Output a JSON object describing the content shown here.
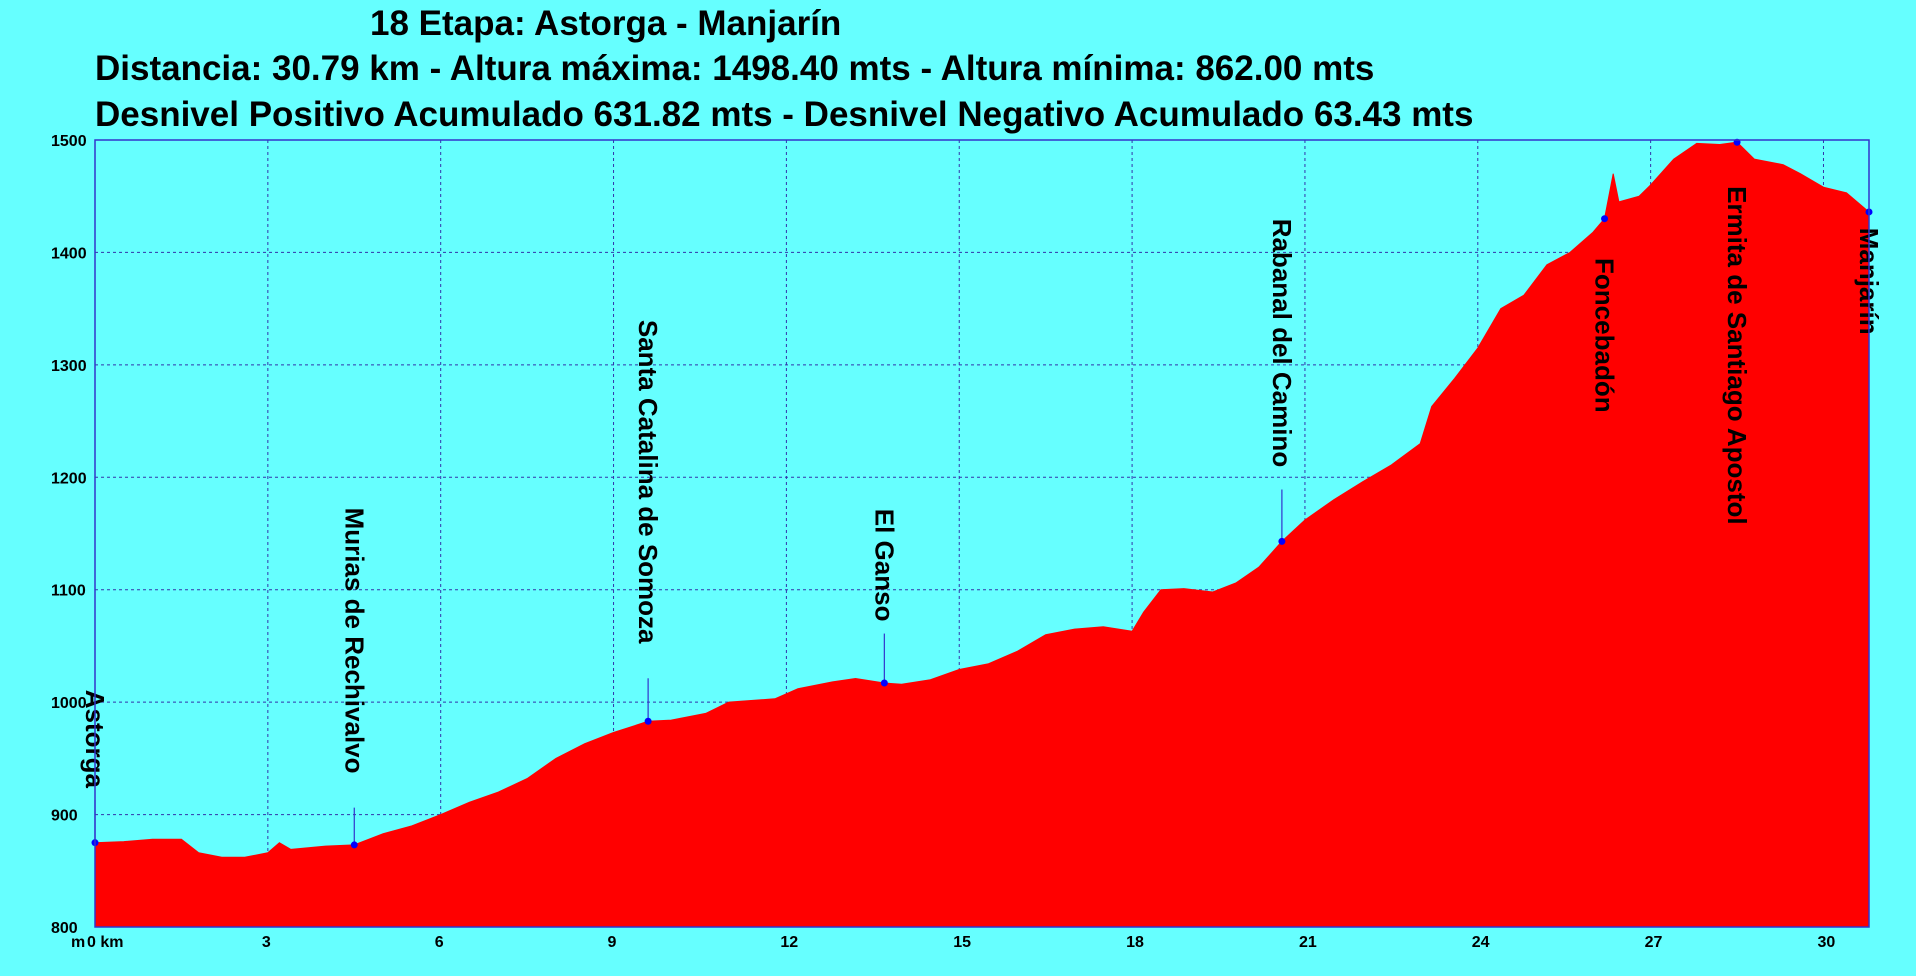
{
  "header": {
    "title": "18 Etapa: Astorga - Manjarín",
    "line2": "Distancia: 30.79 km - Altura máxima: 1498.40 mts - Altura mínima: 862.00 mts",
    "line3": "Desnivel Positivo Acumulado 631.82 mts - Desnivel Negativo Acumulado 63.43 mts"
  },
  "colors": {
    "background": "#66ffff",
    "fill": "#ff0000",
    "outline": "#3333cc",
    "grid": "#3333aa",
    "marker": "#0000ff"
  },
  "chart_data": {
    "type": "area",
    "title": "18 Etapa: Astorga - Manjarín",
    "xlabel": "km",
    "ylabel": "m",
    "xlim": [
      0,
      30.79
    ],
    "ylim": [
      800,
      1500
    ],
    "x_ticks": [
      0,
      3,
      6,
      9,
      12,
      15,
      18,
      21,
      24,
      27,
      30
    ],
    "x_tick_labels": [
      "0 km",
      "3",
      "6",
      "9",
      "12",
      "15",
      "18",
      "21",
      "24",
      "27",
      "30"
    ],
    "y_ticks": [
      800,
      900,
      1000,
      1100,
      1200,
      1300,
      1400,
      1500
    ],
    "y_axis_unit": "m",
    "grid": true,
    "profile": [
      [
        0,
        875
      ],
      [
        0.5,
        876
      ],
      [
        1.0,
        878
      ],
      [
        1.5,
        878
      ],
      [
        1.8,
        866
      ],
      [
        2.2,
        862
      ],
      [
        2.6,
        862
      ],
      [
        3.0,
        866
      ],
      [
        3.2,
        875
      ],
      [
        3.4,
        869
      ],
      [
        4.0,
        872
      ],
      [
        4.5,
        873
      ],
      [
        5.0,
        883
      ],
      [
        5.5,
        890
      ],
      [
        6.0,
        900
      ],
      [
        6.5,
        911
      ],
      [
        7.0,
        920
      ],
      [
        7.5,
        932
      ],
      [
        8.0,
        950
      ],
      [
        8.5,
        963
      ],
      [
        9.0,
        973
      ],
      [
        9.6,
        983
      ],
      [
        10.0,
        984
      ],
      [
        10.6,
        990
      ],
      [
        11.0,
        1000
      ],
      [
        11.8,
        1003
      ],
      [
        12.2,
        1012
      ],
      [
        12.8,
        1018
      ],
      [
        13.2,
        1021
      ],
      [
        13.7,
        1017
      ],
      [
        14.0,
        1016
      ],
      [
        14.5,
        1020
      ],
      [
        15.0,
        1029
      ],
      [
        15.5,
        1034
      ],
      [
        16.0,
        1045
      ],
      [
        16.5,
        1060
      ],
      [
        17.0,
        1065
      ],
      [
        17.5,
        1067
      ],
      [
        18.0,
        1063
      ],
      [
        18.2,
        1080
      ],
      [
        18.5,
        1100
      ],
      [
        18.9,
        1101
      ],
      [
        19.4,
        1098
      ],
      [
        19.8,
        1106
      ],
      [
        20.2,
        1120
      ],
      [
        20.6,
        1143
      ],
      [
        21.0,
        1162
      ],
      [
        21.5,
        1180
      ],
      [
        22.0,
        1196
      ],
      [
        22.5,
        1211
      ],
      [
        23.0,
        1230
      ],
      [
        23.2,
        1263
      ],
      [
        23.6,
        1288
      ],
      [
        24.0,
        1315
      ],
      [
        24.4,
        1350
      ],
      [
        24.8,
        1362
      ],
      [
        25.2,
        1389
      ],
      [
        25.6,
        1400
      ],
      [
        26.0,
        1418
      ],
      [
        26.2,
        1430
      ],
      [
        26.35,
        1470
      ],
      [
        26.45,
        1445
      ],
      [
        26.8,
        1450
      ],
      [
        27.0,
        1460
      ],
      [
        27.4,
        1483
      ],
      [
        27.8,
        1497
      ],
      [
        28.2,
        1496
      ],
      [
        28.5,
        1498
      ],
      [
        28.8,
        1483
      ],
      [
        29.3,
        1478
      ],
      [
        29.6,
        1470
      ],
      [
        30.0,
        1458
      ],
      [
        30.4,
        1453
      ],
      [
        30.79,
        1436
      ]
    ],
    "waypoints": [
      {
        "name": "Astorga",
        "km": 0,
        "elev": 875,
        "label_top_elev": 1011
      },
      {
        "name": "Murias de Rechivalvo",
        "km": 4.5,
        "elev": 873,
        "label_top_elev": 1173
      },
      {
        "name": "Santa Catalina de Somoza",
        "km": 9.6,
        "elev": 983,
        "label_top_elev": 1340
      },
      {
        "name": "El Ganso",
        "km": 13.7,
        "elev": 1017,
        "label_top_elev": 1172
      },
      {
        "name": "Rabanal del Camino",
        "km": 20.6,
        "elev": 1143,
        "label_top_elev": 1430
      },
      {
        "name": "Foncebadón",
        "km": 26.2,
        "elev": 1430,
        "label_top_elev": 1395
      },
      {
        "name": "Ermita de Santiago Apostol",
        "km": 28.5,
        "elev": 1498,
        "label_top_elev": 1459
      },
      {
        "name": "Manjarín",
        "km": 30.79,
        "elev": 1436,
        "label_top_elev": 1422
      }
    ]
  }
}
